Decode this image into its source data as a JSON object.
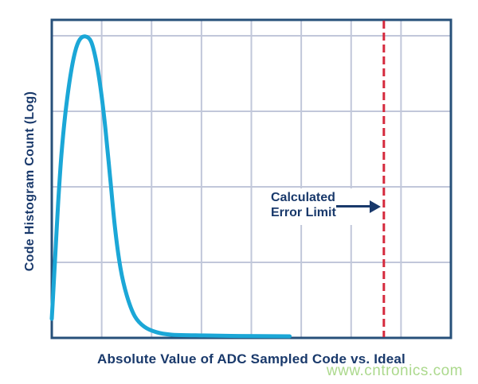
{
  "colors": {
    "axis_border": "#27507a",
    "grid": "#c1c7da",
    "curve": "#1ba7d7",
    "error_line": "#d5293d",
    "text": "#19396b",
    "watermark": "#a0d47d"
  },
  "chart_data": {
    "type": "line",
    "title": "",
    "xlabel": "Absolute Value of ADC Sampled Code vs. Ideal",
    "ylabel": "Code Histogram Count (Log)",
    "x_ticks": [],
    "y_ticks": [],
    "grid": "on",
    "legend": "none",
    "axes_note": "no numeric tick labels; conceptual log-count histogram curve",
    "gridlines": {
      "vertical_fractions": [
        0.125,
        0.25,
        0.375,
        0.5,
        0.625,
        0.75,
        0.875
      ],
      "horizontal_fractions": [
        0.2375,
        0.475,
        0.7125,
        0.95
      ]
    },
    "series": [
      {
        "name": "code-histogram-curve",
        "color": "#1ba7d7",
        "points_normalized": [
          [
            0.0,
            0.06
          ],
          [
            0.004,
            0.15
          ],
          [
            0.01,
            0.288
          ],
          [
            0.016,
            0.425
          ],
          [
            0.024,
            0.573
          ],
          [
            0.034,
            0.705
          ],
          [
            0.046,
            0.818
          ],
          [
            0.058,
            0.898
          ],
          [
            0.07,
            0.938
          ],
          [
            0.084,
            0.948
          ],
          [
            0.098,
            0.933
          ],
          [
            0.11,
            0.878
          ],
          [
            0.122,
            0.788
          ],
          [
            0.134,
            0.663
          ],
          [
            0.146,
            0.508
          ],
          [
            0.158,
            0.35
          ],
          [
            0.172,
            0.22
          ],
          [
            0.188,
            0.133
          ],
          [
            0.208,
            0.068
          ],
          [
            0.232,
            0.035
          ],
          [
            0.262,
            0.018
          ],
          [
            0.3,
            0.01
          ],
          [
            0.36,
            0.008
          ],
          [
            0.47,
            0.006
          ],
          [
            0.596,
            0.005
          ]
        ]
      }
    ],
    "error_limit_line": {
      "x_normalized": 0.832,
      "style": "dashed",
      "color": "#d5293d",
      "label_line1": "Calculated",
      "label_line2": "Error Limit"
    }
  },
  "watermark": {
    "text": "www.cntronics.com"
  }
}
